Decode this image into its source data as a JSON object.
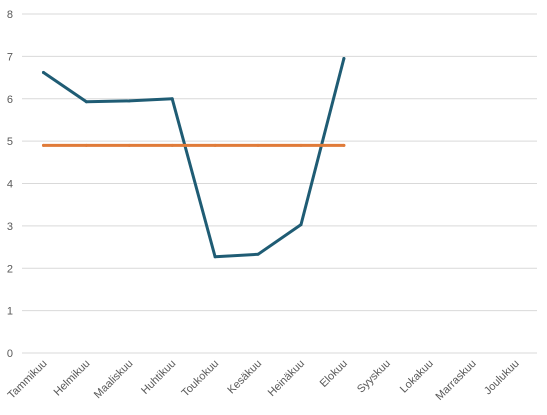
{
  "chart_data": {
    "type": "line",
    "categories": [
      "Tammikuu",
      "Helmikuu",
      "Maaliskuu",
      "Huhtikuu",
      "Toukokuu",
      "Kesäkuu",
      "Heinäkuu",
      "Elokuu",
      "Syyskuu",
      "Lokakuu",
      "Marraskuu",
      "Joulukuu"
    ],
    "series": [
      {
        "values": [
          6.62,
          5.93,
          5.95,
          6.0,
          2.27,
          2.33,
          3.03,
          6.95,
          null,
          null,
          null,
          null
        ],
        "color": "#1f5c74"
      },
      {
        "values": [
          4.9,
          4.9,
          4.9,
          4.9,
          4.9,
          4.9,
          4.9,
          4.9,
          null,
          null,
          null,
          null
        ],
        "color": "#e07b39"
      }
    ],
    "ylim": [
      0,
      8
    ],
    "yticks": [
      "0",
      "1",
      "2",
      "3",
      "4",
      "5",
      "6",
      "7",
      "8"
    ],
    "grid": true,
    "legend": "none"
  }
}
